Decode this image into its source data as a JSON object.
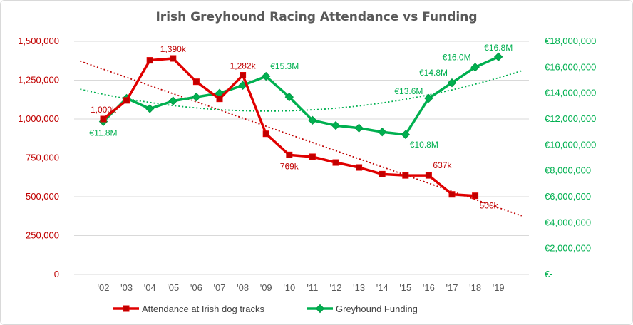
{
  "chart_data": {
    "type": "line",
    "title": "Irish Greyhound Racing Attendance vs Funding",
    "categories": [
      "'02",
      "'03",
      "'04",
      "'05",
      "'06",
      "'07",
      "'08",
      "'09",
      "'10",
      "'11",
      "'12",
      "'13",
      "'14",
      "'15",
      "'16",
      "'17",
      "'18",
      "'19"
    ],
    "series": [
      {
        "name": "Attendance at Irish dog tracks",
        "axis": "left",
        "color": "#e00000",
        "marker": "square",
        "values": [
          1000000,
          1120000,
          1378000,
          1390000,
          1240000,
          1130000,
          1282000,
          905000,
          769000,
          757000,
          720000,
          688000,
          645000,
          637000,
          637000,
          515000,
          506000,
          null
        ],
        "trendline": "linear",
        "trend_color": "#c00000"
      },
      {
        "name": "Greyhound Funding",
        "axis": "right",
        "color": "#00b050",
        "marker": "diamond",
        "values": [
          11800000,
          13600000,
          12800000,
          13400000,
          13700000,
          14000000,
          14600000,
          15300000,
          13700000,
          11900000,
          11500000,
          11300000,
          11000000,
          10800000,
          13600000,
          14800000,
          16000000,
          16800000
        ],
        "trendline": "polynomial",
        "trend_color": "#00b050"
      }
    ],
    "left_axis": {
      "min": 0,
      "max": 1500000,
      "ticks": [
        "0",
        "250,000",
        "500,000",
        "750,000",
        "1,000,000",
        "1,250,000",
        "1,500,000"
      ],
      "color": "#c00000"
    },
    "right_axis": {
      "min": 0,
      "max": 18000000,
      "ticks": [
        "€-",
        "€2,000,000",
        "€4,000,000",
        "€6,000,000",
        "€8,000,000",
        "€10,000,000",
        "€12,000,000",
        "€14,000,000",
        "€16,000,000",
        "€18,000,000"
      ],
      "color": "#00b050"
    },
    "data_labels": [
      {
        "series": 0,
        "index": 0,
        "text": "1,000k",
        "pos": "above"
      },
      {
        "series": 0,
        "index": 3,
        "text": "1,390k",
        "pos": "above"
      },
      {
        "series": 0,
        "index": 6,
        "text": "1,282k",
        "pos": "above"
      },
      {
        "series": 0,
        "index": 8,
        "text": "769k",
        "pos": "below"
      },
      {
        "series": 0,
        "index": 14,
        "text": "637k",
        "pos": "above-right"
      },
      {
        "series": 0,
        "index": 16,
        "text": "506k",
        "pos": "below-right"
      },
      {
        "series": 1,
        "index": 0,
        "text": "€11.8M",
        "pos": "below"
      },
      {
        "series": 1,
        "index": 7,
        "text": "€15.3M",
        "pos": "above-right"
      },
      {
        "series": 1,
        "index": 13,
        "text": "€10.8M",
        "pos": "below-right"
      },
      {
        "series": 1,
        "index": 14,
        "text": "€13.6M",
        "pos": "left"
      },
      {
        "series": 1,
        "index": 15,
        "text": "€14.8M",
        "pos": "above-left"
      },
      {
        "series": 1,
        "index": 16,
        "text": "€16.0M",
        "pos": "above-left"
      },
      {
        "series": 1,
        "index": 17,
        "text": "€16.8M",
        "pos": "above"
      }
    ],
    "legend": {
      "position": "bottom",
      "items": [
        "Attendance at Irish dog tracks",
        "Greyhound Funding"
      ]
    },
    "grid": true
  }
}
